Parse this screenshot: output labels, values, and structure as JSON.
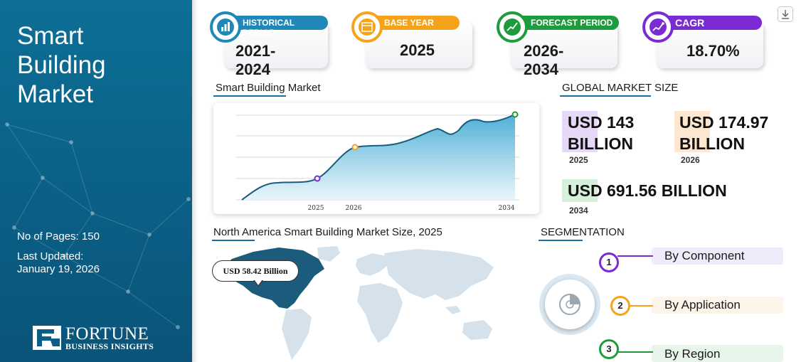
{
  "sidebar": {
    "title_lines": [
      "Smart",
      "Building",
      "Market"
    ],
    "pages": "No of Pages: 150",
    "updated_label": "Last Updated:",
    "updated_date": "January 19, 2026",
    "logo_name": "FORTUNE",
    "logo_sub": "BUSINESS INSIGHTS"
  },
  "stats": [
    {
      "label": "HISTORICAL PERIOD",
      "value": "2021-2024",
      "color": "#1f88b8",
      "icon": "bar-chart-icon"
    },
    {
      "label": "BASE YEAR",
      "value": "2025",
      "color": "#f5a31a",
      "icon": "calendar-icon"
    },
    {
      "label": "FORECAST PERIOD",
      "value": "2026-2034",
      "color": "#1e9b3c",
      "icon": "trend-chart-icon"
    },
    {
      "label": "CAGR",
      "value": "18.70%",
      "color": "#7b2bd6",
      "icon": "growth-chart-icon"
    }
  ],
  "chart_section": {
    "heading": "Smart Building Market"
  },
  "chart_data": {
    "type": "area",
    "title": "",
    "xlabel": "",
    "ylabel": "",
    "x_ticks": [
      "2025",
      "2026",
      "2034"
    ],
    "highlighted_points": [
      {
        "x": "2025",
        "color": "#7b2bd6"
      },
      {
        "x": "2026",
        "color": "#f5a31a"
      },
      {
        "x": "2034",
        "color": "#1e9b3c"
      }
    ],
    "grid": true,
    "fill_color": "#4fb4d8",
    "line_color": "#1b5c7d"
  },
  "global_market": {
    "heading": "GLOBAL MARKET SIZE",
    "items": [
      {
        "value_line1": "USD 143",
        "value_line2": "BILLION",
        "year": "2025",
        "color": "#e6d8f7"
      },
      {
        "value_line1": "USD 174.97",
        "value_line2": "BILLION",
        "year": "2026",
        "color": "#fde7cf"
      },
      {
        "value_line1": "USD 691.56 BILLION",
        "value_line2": "",
        "year": "2034",
        "color": "#d6f0db"
      }
    ]
  },
  "map_section": {
    "heading": "North America Smart Building Market Size, 2025",
    "callout": "USD 58.42 Billion",
    "highlight_color": "#1b5c7d",
    "land_color": "#d5e2ec"
  },
  "segmentation": {
    "heading": "SEGMENTATION",
    "items": [
      {
        "num": "1",
        "label": "By Component",
        "color": "#7b2bd6",
        "bg": "#f0ebfb"
      },
      {
        "num": "2",
        "label": "By Application",
        "color": "#f5a31a",
        "bg": "#fef5ea"
      },
      {
        "num": "3",
        "label": "By Region",
        "color": "#1e9b3c",
        "bg": "#e8f5ea"
      }
    ]
  }
}
